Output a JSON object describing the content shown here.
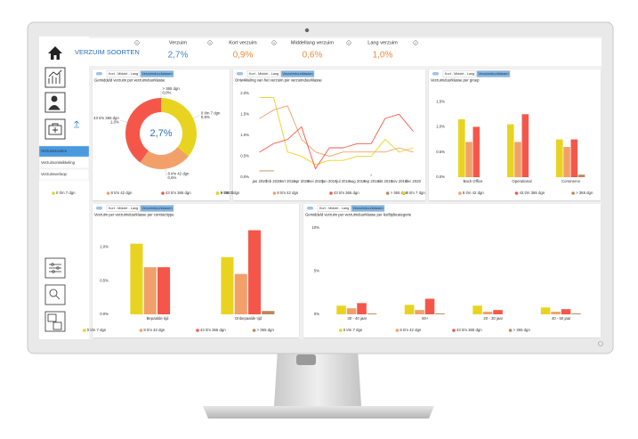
{
  "header": {
    "title": "VERZUIM SOORTEN"
  },
  "kpis": [
    {
      "label": "Verzuim",
      "value": "2,7%"
    },
    {
      "label": "Kort verzuim",
      "value": "0,9%"
    },
    {
      "label": "Middellang verzuim",
      "value": "0,6%"
    },
    {
      "label": "Lang verzuim",
      "value": "1,0%"
    }
  ],
  "sidebar": {
    "menu": [
      "Verzuimsoorten",
      "Verzuimontwikkeling",
      "Verzuimverloop"
    ]
  },
  "chart_data": [
    {
      "type": "pie",
      "tabs": [
        "Kort - Middel - Lang",
        "Verzuimduurklassen"
      ],
      "title": "Gemiddeld verzuim per verzuimduurklasse",
      "center_label": "2,7%",
      "categories": [
        "0 t/m 7 dgn",
        "8 t/m 42 dgn",
        "43 t/m 365 dgn",
        "> 365 dgn"
      ],
      "values": [
        0.9,
        0.6,
        1.0,
        0.0
      ],
      "value_labels": [
        "0,9%",
        "0,6%",
        "1,0%",
        "0,0%"
      ],
      "colors": [
        "#e8d420",
        "#f2a06a",
        "#f4574a",
        "#b98a5c"
      ]
    },
    {
      "type": "line",
      "tabs": [
        "Kort - Middel - Lang",
        "Verzuimduurklassen"
      ],
      "title": "Ontwikkeling van het verzuim per verzuimduurklasse",
      "categories": [
        "jan 2020",
        "feb 2020",
        "mrt 2019",
        "apr 2020",
        "mei 2020",
        "jun 2019",
        "jul 2019",
        "aug 2019",
        "sep 2019",
        "okt 2019",
        "nov 2019",
        "dec 2020"
      ],
      "series": [
        {
          "name": "0 t/m 7 dgn",
          "color": "#e8d420",
          "values": [
            1.9,
            1.9,
            0.6,
            0.5,
            0.3,
            0.4,
            0.4,
            0.5,
            0.5,
            0.9,
            0.6,
            0.7
          ]
        },
        {
          "name": "8 t/m 42 dgn",
          "color": "#f2a06a",
          "values": [
            1.4,
            1.6,
            1.7,
            0.9,
            0.6,
            0.5,
            0.6,
            0.6,
            0.6,
            0.6,
            0.7,
            0.6
          ]
        },
        {
          "name": "43 t/m 365 dgn",
          "color": "#f4574a",
          "values": [
            0.6,
            0.8,
            0.9,
            1.2,
            0.2,
            0.7,
            0.7,
            0.8,
            0.8,
            1.4,
            1.5,
            1.1
          ]
        },
        {
          "name": "> 365 dgn",
          "color": "#b98a5c",
          "values": [
            0.15,
            0.15,
            null,
            null,
            null,
            null,
            null,
            null,
            0.05,
            null,
            null,
            null
          ]
        }
      ],
      "ylim": [
        0,
        2.1
      ],
      "yticks": [
        {
          "value": 0,
          "label": "0.0%"
        },
        {
          "value": 0.5,
          "label": "0.5%"
        },
        {
          "value": 1,
          "label": "1.0%"
        },
        {
          "value": 1.5,
          "label": "1.5%"
        },
        {
          "value": 2,
          "label": "2.0%"
        }
      ],
      "grid": false
    },
    {
      "type": "bar",
      "tabs": [
        "Kort - Middel - Lang",
        "Verzuimduurklassen"
      ],
      "title": "Verzuimduurklasse per groep",
      "categories": [
        "Back Office",
        "Operational",
        "Commerce"
      ],
      "series": [
        {
          "name": "0 t/m 7 dgn",
          "color": "#e8d420",
          "values": [
            1.15,
            1.05,
            0.75
          ]
        },
        {
          "name": "8 t/m 42 dgn",
          "color": "#f2a06a",
          "values": [
            0.7,
            0.7,
            0.6
          ]
        },
        {
          "name": "43 t/m 365 dgn",
          "color": "#f4574a",
          "values": [
            1.0,
            1.25,
            0.75
          ]
        },
        {
          "name": "> 365 dgn",
          "color": "#b98a5c",
          "values": [
            0.0,
            0.0,
            0.05
          ]
        }
      ],
      "ylim": [
        0,
        1.75
      ],
      "yticks": [
        {
          "value": 0,
          "label": "0.0%"
        },
        {
          "value": 0.5,
          "label": "0.5%"
        },
        {
          "value": 1,
          "label": "1.0%"
        },
        {
          "value": 1.5,
          "label": "1.5%"
        }
      ],
      "grid": false
    },
    {
      "type": "bar",
      "tabs": [
        "Kort - Middel - Lang",
        "Verzuimduurklassen"
      ],
      "title": "Verzuim per verzuimduurklasse per contracttype",
      "categories": [
        "Bepaalde tijd",
        "Onbepaalde tijd"
      ],
      "series": [
        {
          "name": "0 t/m 7 dgn",
          "color": "#e8d420",
          "values": [
            1.05,
            0.85
          ]
        },
        {
          "name": "8 t/m 42 dgn",
          "color": "#f2a06a",
          "values": [
            0.7,
            0.6
          ]
        },
        {
          "name": "43 t/m 365 dgn",
          "color": "#f4574a",
          "values": [
            0.7,
            1.25
          ]
        },
        {
          "name": "> 365 dgn",
          "color": "#b98a5c",
          "values": [
            0.0,
            0.05
          ]
        }
      ],
      "ylim": [
        0,
        1.35
      ],
      "yticks": [
        {
          "value": 0,
          "label": "0.0%"
        },
        {
          "value": 0.5,
          "label": "0.5%"
        },
        {
          "value": 1,
          "label": "1.0%"
        }
      ],
      "grid": false
    },
    {
      "type": "bar",
      "tabs": [
        "Kort - Middel - Lang",
        "Verzuimduurklassen"
      ],
      "title": "Gemiddeld verzuim per verzuimduurklasse per leeftijdscategorie",
      "categories": [
        "30 - 40 jaar",
        "50+",
        "20 - 30 jaar",
        "40 - 50 jaar"
      ],
      "series": [
        {
          "name": "0 t/m 7 dgn",
          "color": "#e8d420",
          "values": [
            1.0,
            1.1,
            1.0,
            0.8
          ]
        },
        {
          "name": "8 t/m 42 dgn",
          "color": "#f2a06a",
          "values": [
            0.7,
            0.5,
            0.3,
            0.3
          ]
        },
        {
          "name": "43 t/m 365 dgn",
          "color": "#f4574a",
          "values": [
            1.3,
            1.8,
            0.5,
            0.6
          ]
        },
        {
          "name": "> 365 dgn",
          "color": "#b98a5c",
          "values": [
            0.1,
            0.1,
            0.0,
            0.1
          ]
        }
      ],
      "ylim": [
        0,
        10.5
      ],
      "yticks": [
        {
          "value": 0,
          "label": "0%"
        },
        {
          "value": 5,
          "label": "5%"
        },
        {
          "value": 10,
          "label": "10%"
        }
      ],
      "grid": false
    }
  ]
}
